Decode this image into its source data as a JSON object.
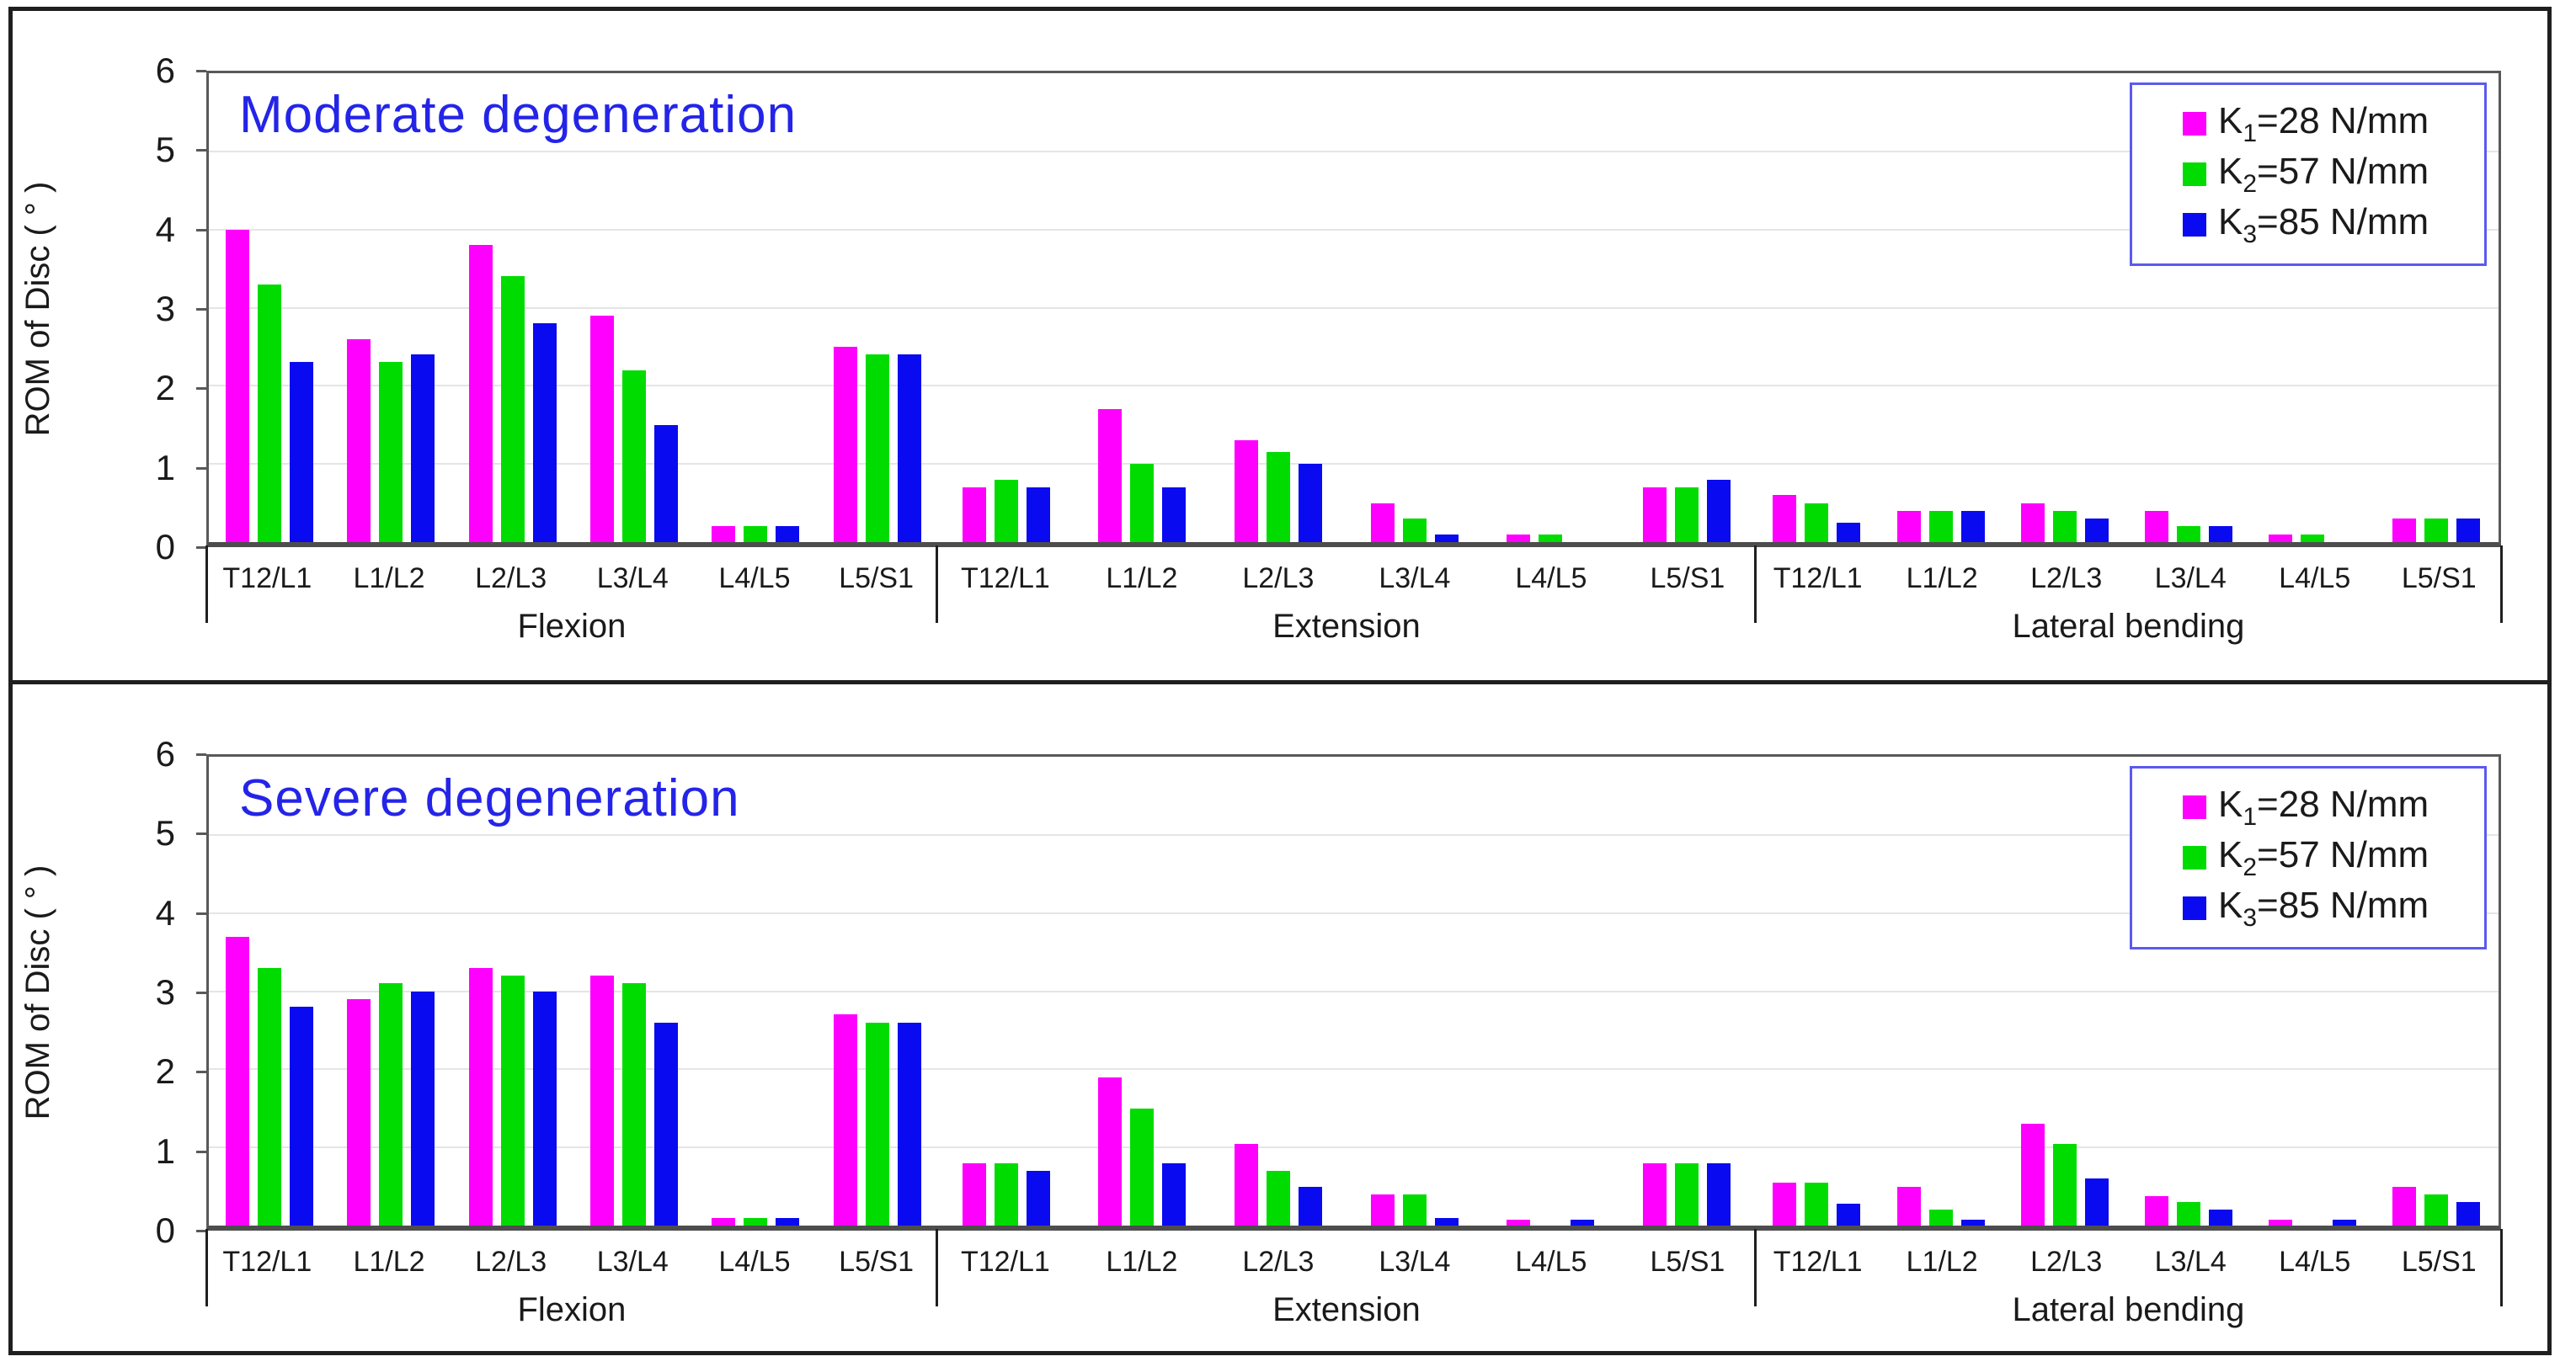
{
  "figure": {
    "y_axis_label": "ROM of Disc ( ° )",
    "y_ticks": [
      "0",
      "1",
      "2",
      "3",
      "4",
      "5",
      "6"
    ],
    "colors": {
      "series1": "#FF00FF",
      "series2": "#00DC00",
      "series3": "#0A0AF0",
      "title_blue": "#2424E8",
      "legend_border": "#5A5AF0"
    },
    "legend": {
      "position": "top-right",
      "entries": [
        {
          "base": "K",
          "sub": "1",
          "rest": "=28 N/mm",
          "color": "#FF00FF"
        },
        {
          "base": "K",
          "sub": "2",
          "rest": "=57 N/mm",
          "color": "#00DC00"
        },
        {
          "base": "K",
          "sub": "3",
          "rest": "=85 N/mm",
          "color": "#0A0AF0"
        }
      ]
    }
  },
  "chart_data": [
    {
      "type": "bar",
      "title": "Moderate degeneration",
      "ylabel": "ROM of Disc ( ° )",
      "ylim": [
        0,
        6
      ],
      "grid": true,
      "legend_position": "top-right",
      "categories": [
        "T12/L1",
        "L1/L2",
        "L2/L3",
        "L3/L4",
        "L4/L5",
        "L5/S1"
      ],
      "groups": [
        {
          "label": "Flexion",
          "series": [
            {
              "name": "K1=28 N/mm",
              "color": "#FF00FF",
              "values": [
                4.0,
                2.6,
                3.8,
                2.9,
                0.2,
                2.5
              ]
            },
            {
              "name": "K2=57 N/mm",
              "color": "#00DC00",
              "values": [
                3.3,
                2.3,
                3.4,
                2.2,
                0.2,
                2.4
              ]
            },
            {
              "name": "K3=85 N/mm",
              "color": "#0A0AF0",
              "values": [
                2.3,
                2.4,
                2.8,
                1.5,
                0.2,
                2.4
              ]
            }
          ]
        },
        {
          "label": "Extension",
          "series": [
            {
              "name": "K1=28 N/mm",
              "color": "#FF00FF",
              "values": [
                0.7,
                1.7,
                1.3,
                0.5,
                0.1,
                0.7
              ]
            },
            {
              "name": "K2=57 N/mm",
              "color": "#00DC00",
              "values": [
                0.8,
                1.0,
                1.15,
                0.3,
                0.1,
                0.7
              ]
            },
            {
              "name": "K3=85 N/mm",
              "color": "#0A0AF0",
              "values": [
                0.7,
                0.7,
                1.0,
                0.1,
                0,
                0.8
              ]
            }
          ]
        },
        {
          "label": "Lateral bending",
          "series": [
            {
              "name": "K1=28 N/mm",
              "color": "#FF00FF",
              "values": [
                0.6,
                0.4,
                0.5,
                0.4,
                0.1,
                0.3
              ]
            },
            {
              "name": "K2=57 N/mm",
              "color": "#00DC00",
              "values": [
                0.5,
                0.4,
                0.4,
                0.2,
                0.1,
                0.3
              ]
            },
            {
              "name": "K3=85 N/mm",
              "color": "#0A0AF0",
              "values": [
                0.25,
                0.4,
                0.3,
                0.2,
                0,
                0.3
              ]
            }
          ]
        }
      ]
    },
    {
      "type": "bar",
      "title": "Severe degeneration",
      "ylabel": "ROM of Disc ( ° )",
      "ylim": [
        0,
        6
      ],
      "grid": true,
      "legend_position": "top-right",
      "categories": [
        "T12/L1",
        "L1/L2",
        "L2/L3",
        "L3/L4",
        "L4/L5",
        "L5/S1"
      ],
      "groups": [
        {
          "label": "Flexion",
          "series": [
            {
              "name": "K1=28 N/mm",
              "color": "#FF00FF",
              "values": [
                3.7,
                2.9,
                3.3,
                3.2,
                0.1,
                2.7
              ]
            },
            {
              "name": "K2=57 N/mm",
              "color": "#00DC00",
              "values": [
                3.3,
                3.1,
                3.2,
                3.1,
                0.1,
                2.6
              ]
            },
            {
              "name": "K3=85 N/mm",
              "color": "#0A0AF0",
              "values": [
                2.8,
                3.0,
                3.0,
                2.6,
                0.1,
                2.6
              ]
            }
          ]
        },
        {
          "label": "Extension",
          "series": [
            {
              "name": "K1=28 N/mm",
              "color": "#FF00FF",
              "values": [
                0.8,
                1.9,
                1.05,
                0.4,
                0.08,
                0.8
              ]
            },
            {
              "name": "K2=57 N/mm",
              "color": "#00DC00",
              "values": [
                0.8,
                1.5,
                0.7,
                0.4,
                0,
                0.8
              ]
            },
            {
              "name": "K3=85 N/mm",
              "color": "#0A0AF0",
              "values": [
                0.7,
                0.8,
                0.5,
                0.1,
                0.08,
                0.8
              ]
            }
          ]
        },
        {
          "label": "Lateral bending",
          "series": [
            {
              "name": "K1=28 N/mm",
              "color": "#FF00FF",
              "values": [
                0.55,
                0.5,
                1.3,
                0.38,
                0.08,
                0.5
              ]
            },
            {
              "name": "K2=57 N/mm",
              "color": "#00DC00",
              "values": [
                0.55,
                0.2,
                1.05,
                0.3,
                0,
                0.4
              ]
            },
            {
              "name": "K3=85 N/mm",
              "color": "#0A0AF0",
              "values": [
                0.28,
                0.08,
                0.6,
                0.2,
                0.08,
                0.3
              ]
            }
          ]
        }
      ]
    }
  ]
}
